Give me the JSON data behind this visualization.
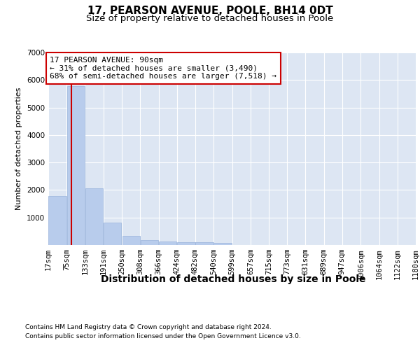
{
  "title1": "17, PEARSON AVENUE, POOLE, BH14 0DT",
  "title2": "Size of property relative to detached houses in Poole",
  "xlabel": "Distribution of detached houses by size in Poole",
  "ylabel": "Number of detached properties",
  "bins": [
    "17sqm",
    "75sqm",
    "133sqm",
    "191sqm",
    "250sqm",
    "308sqm",
    "366sqm",
    "424sqm",
    "482sqm",
    "540sqm",
    "599sqm",
    "657sqm",
    "715sqm",
    "773sqm",
    "831sqm",
    "889sqm",
    "947sqm",
    "1006sqm",
    "1064sqm",
    "1122sqm",
    "1180sqm"
  ],
  "bin_edges": [
    17,
    75,
    133,
    191,
    250,
    308,
    366,
    424,
    482,
    540,
    599,
    657,
    715,
    773,
    831,
    889,
    947,
    1006,
    1064,
    1122,
    1180
  ],
  "values": [
    1780,
    5780,
    2060,
    810,
    340,
    185,
    115,
    100,
    95,
    75,
    0,
    0,
    0,
    0,
    0,
    0,
    0,
    0,
    0,
    0
  ],
  "bar_color": "#b8ccec",
  "bar_edgecolor": "#9ab4dc",
  "property_line_x": 90,
  "property_line_color": "#cc0000",
  "annotation_text": "17 PEARSON AVENUE: 90sqm\n← 31% of detached houses are smaller (3,490)\n68% of semi-detached houses are larger (7,518) →",
  "annotation_box_edgecolor": "#cc0000",
  "annotation_fontsize": 8,
  "ylim": [
    0,
    7000
  ],
  "yticks": [
    0,
    1000,
    2000,
    3000,
    4000,
    5000,
    6000,
    7000
  ],
  "background_color": "#dde6f3",
  "grid_color": "#ffffff",
  "footnote1": "Contains HM Land Registry data © Crown copyright and database right 2024.",
  "footnote2": "Contains public sector information licensed under the Open Government Licence v3.0.",
  "title1_fontsize": 11,
  "title2_fontsize": 9.5,
  "xlabel_fontsize": 10,
  "ylabel_fontsize": 8,
  "tick_fontsize": 7.5,
  "footnote_fontsize": 6.5
}
